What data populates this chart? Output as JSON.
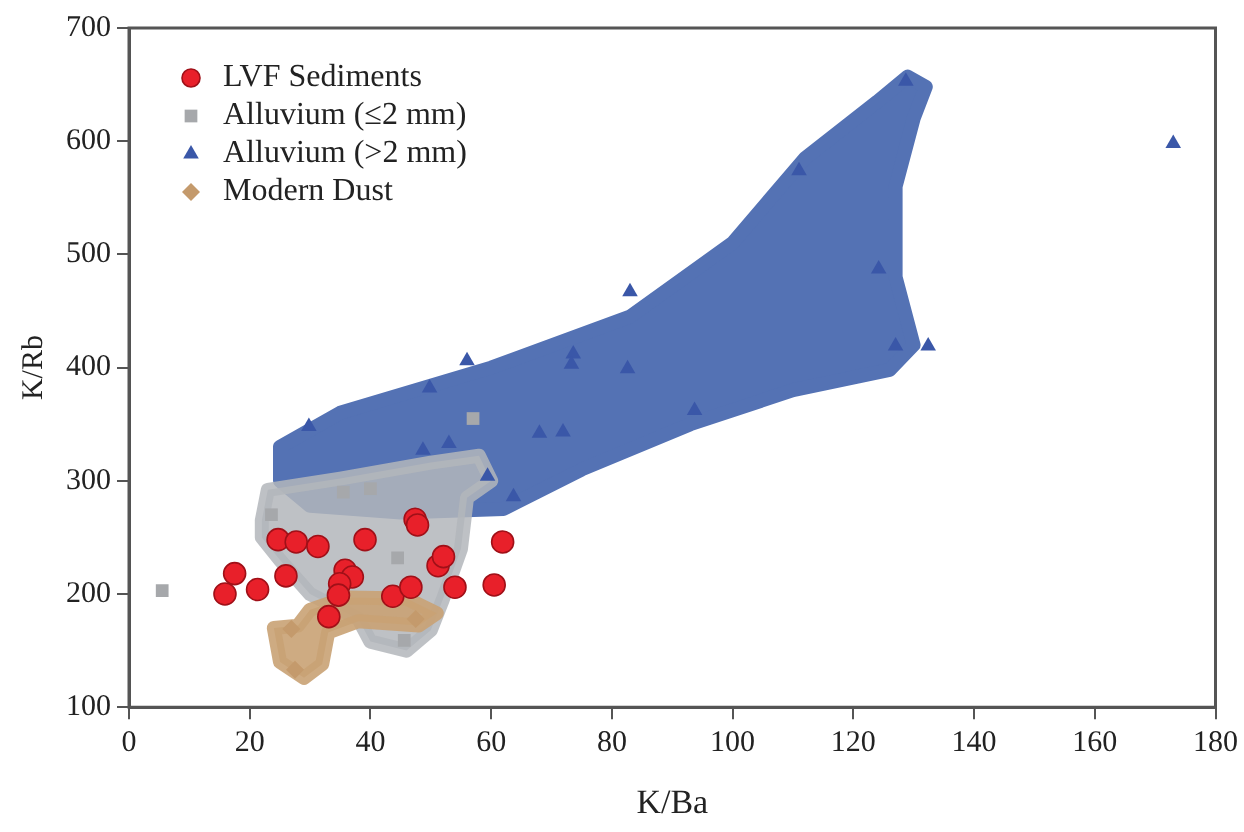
{
  "chart_data": {
    "type": "scatter",
    "xlabel": "K/Ba",
    "ylabel": "K/Rb",
    "xlim": [
      0,
      180
    ],
    "xticks": [
      0,
      20,
      40,
      60,
      80,
      100,
      120,
      140,
      160,
      180
    ],
    "ylim": [
      100,
      700
    ],
    "yticks": [
      100,
      200,
      300,
      400,
      500,
      600,
      700
    ],
    "grid": false,
    "legend": "top left",
    "series": [
      {
        "name": "LVF Sediments",
        "color": "#e8202a",
        "marker": "circle",
        "x": [
          15.9,
          17.5,
          21.3,
          24.7,
          26.0,
          27.7,
          31.3,
          33.1,
          35.8,
          37.0,
          34.9,
          34.7,
          39.1,
          43.7,
          46.7,
          47.4,
          47.8,
          51.2,
          52.1,
          54.0,
          60.5,
          61.9
        ],
        "values": [
          200,
          218,
          204,
          248,
          216,
          246,
          242,
          180,
          221,
          215,
          209,
          199,
          248,
          198,
          206,
          266,
          261,
          225,
          233,
          206,
          208,
          246
        ]
      },
      {
        "name": "Alluvium (≤2 mm)",
        "color": "#a6a8ab",
        "marker": "square",
        "x": [
          5.5,
          57,
          35.5,
          40,
          23.6,
          44.5,
          45.6
        ],
        "values": [
          203,
          355,
          290,
          293,
          270,
          232,
          159
        ]
      },
      {
        "name": "Alluvium (>2 mm)",
        "color": "#3a57a8",
        "marker": "triangle",
        "x": [
          128.7,
          173,
          111,
          124.2,
          83,
          127,
          132.4,
          56,
          73.6,
          73.3,
          82.6,
          49.8,
          29.8,
          93.7,
          68,
          71.9,
          53,
          48.7,
          59.4,
          63.7
        ],
        "values": [
          653,
          598,
          574,
          487,
          467,
          419,
          419,
          406,
          412,
          403,
          399,
          382,
          348,
          362,
          342,
          343,
          333,
          327,
          304,
          286
        ]
      },
      {
        "name": "Modern Dust",
        "color": "#c49a6c",
        "marker": "diamond",
        "x": [
          26.9,
          27.5,
          47.5
        ],
        "values": [
          169,
          133,
          178
        ]
      }
    ]
  }
}
